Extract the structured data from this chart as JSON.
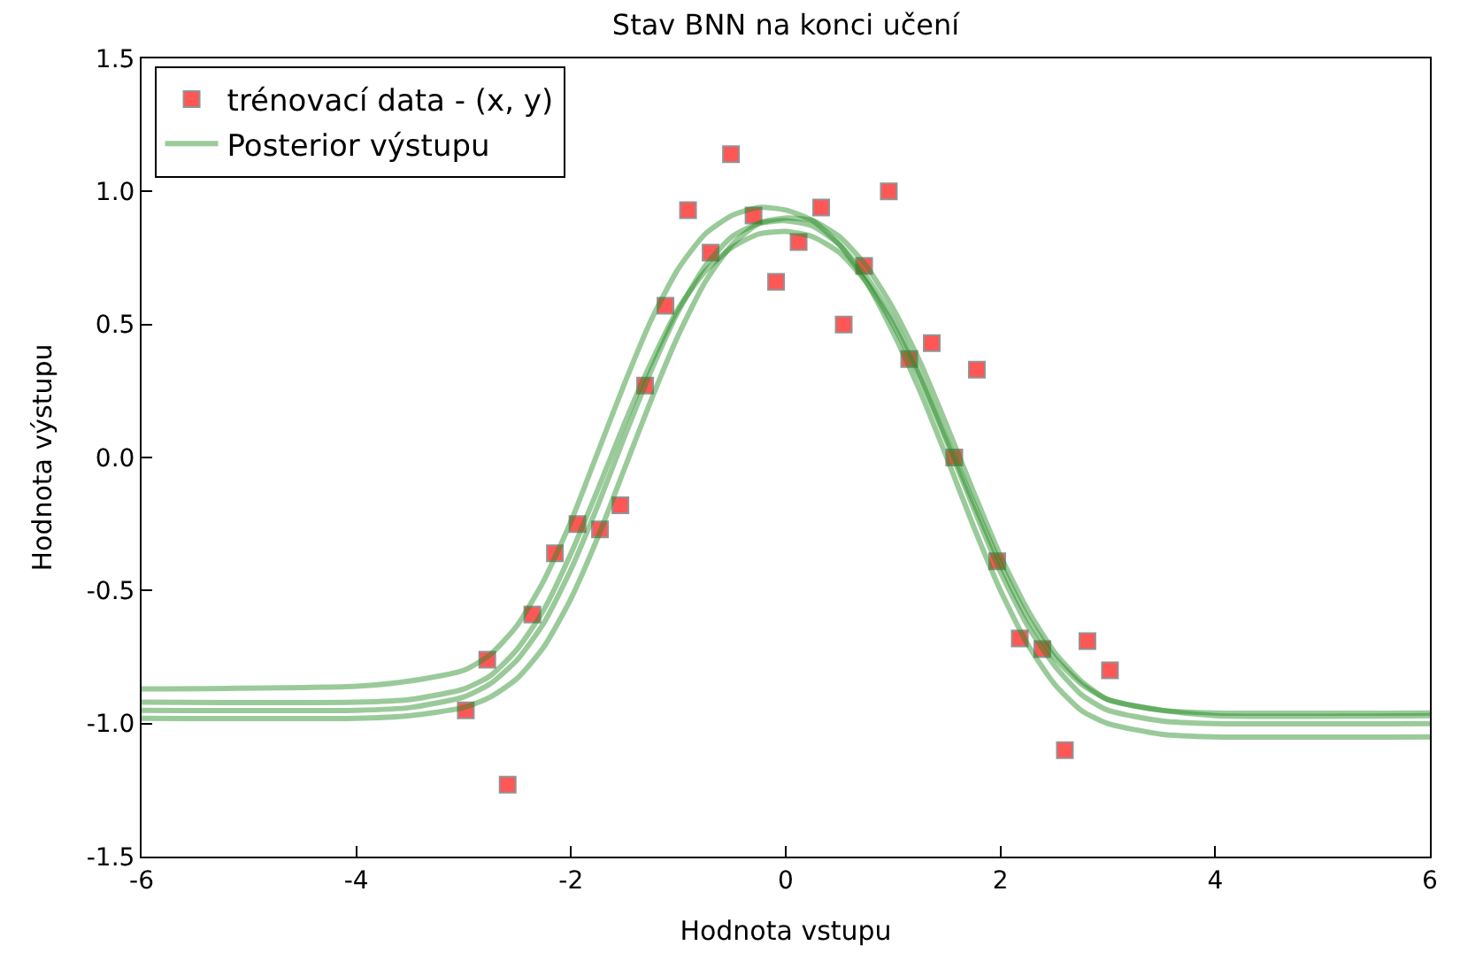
{
  "chart_data": {
    "type": "line",
    "title": "Stav BNN na konci učení",
    "xlabel": "Hodnota vstupu",
    "ylabel": "Hodnota výstupu",
    "xlim": [
      -6,
      6
    ],
    "xticks": [
      -6,
      -4,
      -2,
      0,
      2,
      4,
      6
    ],
    "ylim": [
      -1.5,
      1.5
    ],
    "yticks": [
      -1.5,
      {
        "value": -1,
        "label": "-1.0"
      },
      -0.5,
      {
        "value": 0,
        "label": "0.0"
      },
      0.5,
      {
        "value": 1,
        "label": "1.0"
      },
      1.5
    ],
    "grid": false,
    "legend": "top left",
    "series": [
      {
        "name": "trénovací data - (x, y)",
        "type": "scatter",
        "marker": "square",
        "color": "#ff4444",
        "x": [
          -2.98,
          -2.78,
          -2.59,
          -2.36,
          -2.15,
          -1.94,
          -1.73,
          -1.54,
          -1.31,
          -1.12,
          -0.91,
          -0.7,
          -0.51,
          -0.3,
          -0.09,
          0.12,
          0.33,
          0.54,
          0.73,
          0.96,
          1.15,
          1.36,
          1.57,
          1.78,
          1.97,
          2.18,
          2.39,
          2.6,
          2.81,
          3.02
        ],
        "values": [
          -0.95,
          -0.76,
          -1.23,
          -0.59,
          -0.36,
          -0.25,
          -0.27,
          -0.18,
          0.27,
          0.57,
          0.93,
          0.77,
          1.14,
          0.91,
          0.66,
          0.81,
          0.94,
          0.5,
          0.72,
          1.0,
          0.37,
          0.43,
          0.0,
          0.33,
          -0.39,
          -0.68,
          -0.72,
          -1.1,
          -0.69,
          -0.8
        ]
      },
      {
        "name": "Posterior výstupu",
        "marker": "none",
        "line_style": "solid",
        "color": "#228b22",
        "x": [
          -6,
          -4,
          -3.5,
          -3,
          -2.75,
          -2.5,
          -2.25,
          -2,
          -1.75,
          -1.5,
          -1.25,
          -1,
          -0.75,
          -0.5,
          -0.25,
          0,
          0.25,
          0.5,
          0.75,
          1,
          1.25,
          1.5,
          1.75,
          2,
          2.25,
          2.5,
          2.75,
          3,
          3.5,
          4,
          6
        ],
        "values": [
          -0.95,
          -0.95,
          -0.94,
          -0.9,
          -0.85,
          -0.76,
          -0.62,
          -0.42,
          -0.18,
          0.08,
          0.33,
          0.55,
          0.72,
          0.83,
          0.88,
          0.89,
          0.87,
          0.8,
          0.68,
          0.52,
          0.31,
          0.07,
          -0.17,
          -0.4,
          -0.6,
          -0.75,
          -0.85,
          -0.91,
          -0.95,
          -0.96,
          -0.96
        ]
      },
      {
        "marker": "none",
        "line_style": "solid",
        "color": "#228b22",
        "x": [
          -6,
          -4,
          -3.5,
          -3,
          -2.75,
          -2.5,
          -2.25,
          -2,
          -1.75,
          -1.5,
          -1.25,
          -1,
          -0.75,
          -0.5,
          -0.25,
          0,
          0.25,
          0.5,
          0.75,
          1,
          1.25,
          1.5,
          1.75,
          2,
          2.25,
          2.5,
          2.75,
          3,
          3.5,
          4,
          6
        ],
        "values": [
          -0.87,
          -0.86,
          -0.84,
          -0.8,
          -0.74,
          -0.63,
          -0.46,
          -0.24,
          0.02,
          0.28,
          0.52,
          0.71,
          0.84,
          0.91,
          0.94,
          0.93,
          0.89,
          0.8,
          0.66,
          0.47,
          0.25,
          0.0,
          -0.26,
          -0.5,
          -0.7,
          -0.85,
          -0.95,
          -1.0,
          -1.04,
          -1.05,
          -1.05
        ]
      },
      {
        "marker": "none",
        "line_style": "solid",
        "color": "#228b22",
        "x": [
          -6,
          -4,
          -3.5,
          -3,
          -2.75,
          -2.5,
          -2.25,
          -2,
          -1.75,
          -1.5,
          -1.25,
          -1,
          -0.75,
          -0.5,
          -0.25,
          0,
          0.25,
          0.5,
          0.75,
          1,
          1.25,
          1.5,
          1.75,
          2,
          2.25,
          2.5,
          2.75,
          3,
          3.5,
          4,
          6
        ],
        "values": [
          -0.92,
          -0.92,
          -0.91,
          -0.87,
          -0.82,
          -0.72,
          -0.57,
          -0.36,
          -0.12,
          0.13,
          0.36,
          0.56,
          0.7,
          0.79,
          0.84,
          0.85,
          0.83,
          0.77,
          0.66,
          0.5,
          0.3,
          0.06,
          -0.19,
          -0.43,
          -0.63,
          -0.78,
          -0.89,
          -0.95,
          -0.99,
          -1.0,
          -1.0
        ]
      },
      {
        "marker": "none",
        "line_style": "solid",
        "color": "#228b22",
        "x": [
          -6,
          -4,
          -3.5,
          -3,
          -2.75,
          -2.5,
          -2.25,
          -2,
          -1.75,
          -1.5,
          -1.25,
          -1,
          -0.75,
          -0.5,
          -0.25,
          0,
          0.25,
          0.5,
          0.75,
          1,
          1.25,
          1.5,
          1.75,
          2,
          2.25,
          2.5,
          2.75,
          3,
          3.5,
          4,
          6
        ],
        "values": [
          -0.98,
          -0.98,
          -0.97,
          -0.94,
          -0.9,
          -0.83,
          -0.71,
          -0.53,
          -0.3,
          -0.04,
          0.22,
          0.46,
          0.66,
          0.8,
          0.88,
          0.9,
          0.89,
          0.83,
          0.72,
          0.56,
          0.36,
          0.12,
          -0.13,
          -0.37,
          -0.57,
          -0.73,
          -0.84,
          -0.91,
          -0.95,
          -0.97,
          -0.97
        ]
      }
    ]
  }
}
